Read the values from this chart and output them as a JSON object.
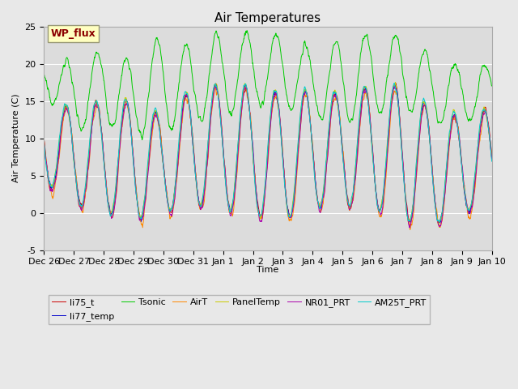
{
  "title": "Air Temperatures",
  "ylabel": "Air Temperature (C)",
  "xlabel": "Time",
  "ylim": [
    -5,
    25
  ],
  "background_color": "#e8e8e8",
  "plot_bg_color": "#dcdcdc",
  "legend_label": "WP_flux",
  "series_colors": {
    "li75_t": "#cc0000",
    "li77_temp": "#0000cc",
    "Tsonic": "#00cc00",
    "AirT": "#ff8800",
    "PanelTemp": "#cccc00",
    "NR01_PRT": "#aa00aa",
    "AM25T_PRT": "#00cccc"
  },
  "num_points": 1440,
  "days": 15,
  "yticks": [
    -5,
    0,
    5,
    10,
    15,
    20,
    25
  ],
  "xtick_labels": [
    "Dec 26",
    "Dec 27",
    "Dec 28",
    "Dec 29",
    "Dec 30",
    "Dec 31",
    "Jan 1",
    "Jan 2",
    "Jan 3",
    "Jan 4",
    "Jan 5",
    "Jan 6",
    "Jan 7",
    "Jan 8",
    "Jan 9",
    "Jan 10"
  ],
  "title_fontsize": 11,
  "axis_fontsize": 8,
  "tick_fontsize": 8,
  "legend_fontsize": 8
}
